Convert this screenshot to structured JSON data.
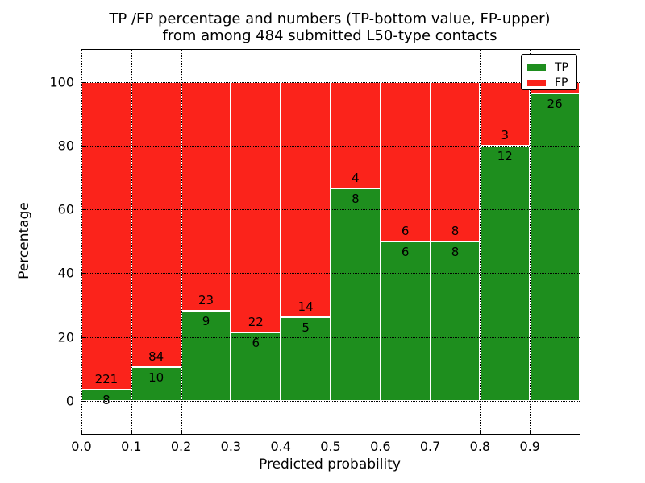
{
  "figure": {
    "title_line1": "TP /FP percentage and numbers (TP-bottom value, FP-upper)",
    "title_line2": "from among 484 submitted L50-type contacts",
    "xlabel": "Predicted probability",
    "ylabel": "Percentage",
    "legend": {
      "tp_label": "TP",
      "fp_label": "FP"
    }
  },
  "chart_data": {
    "type": "bar",
    "stacked": true,
    "normalized_to_percent": true,
    "title": "TP /FP percentage and numbers (TP-bottom value, FP-upper)\nfrom among 484 submitted L50-type contacts",
    "xlabel": "Predicted probability",
    "ylabel": "Percentage",
    "total_submitted_contacts": 484,
    "xlim": [
      0.0,
      1.0
    ],
    "ylim": [
      -10.4,
      110
    ],
    "xticks": [
      "0.0",
      "0.1",
      "0.2",
      "0.3",
      "0.4",
      "0.5",
      "0.6",
      "0.7",
      "0.8",
      "0.9"
    ],
    "yticks": [
      0,
      20,
      40,
      60,
      80,
      100
    ],
    "grid": "dotted-black-both-axes",
    "legend_position": "upper-right",
    "colors": {
      "tp": "#1e8e1e",
      "fp": "#fb231b",
      "bar_edge": "#ffffff"
    },
    "series": [
      {
        "name": "TP",
        "role": "bottom"
      },
      {
        "name": "FP",
        "role": "top"
      }
    ],
    "bins": [
      {
        "x_range": [
          0.0,
          0.1
        ],
        "tp": 8,
        "fp": 221,
        "fp_label_visible": true
      },
      {
        "x_range": [
          0.1,
          0.2
        ],
        "tp": 10,
        "fp": 84,
        "fp_label_visible": true
      },
      {
        "x_range": [
          0.2,
          0.3
        ],
        "tp": 9,
        "fp": 23,
        "fp_label_visible": true
      },
      {
        "x_range": [
          0.3,
          0.4
        ],
        "tp": 6,
        "fp": 22,
        "fp_label_visible": true
      },
      {
        "x_range": [
          0.4,
          0.5
        ],
        "tp": 5,
        "fp": 14,
        "fp_label_visible": true
      },
      {
        "x_range": [
          0.5,
          0.6
        ],
        "tp": 8,
        "fp": 4,
        "fp_label_visible": true
      },
      {
        "x_range": [
          0.6,
          0.7
        ],
        "tp": 6,
        "fp": 6,
        "fp_label_visible": true
      },
      {
        "x_range": [
          0.7,
          0.8
        ],
        "tp": 8,
        "fp": 8,
        "fp_label_visible": true
      },
      {
        "x_range": [
          0.8,
          0.9
        ],
        "tp": 12,
        "fp": 3,
        "fp_label_visible": true
      },
      {
        "x_range": [
          0.9,
          1.0
        ],
        "tp": 26,
        "fp": 1,
        "fp_label_visible": false
      }
    ]
  }
}
